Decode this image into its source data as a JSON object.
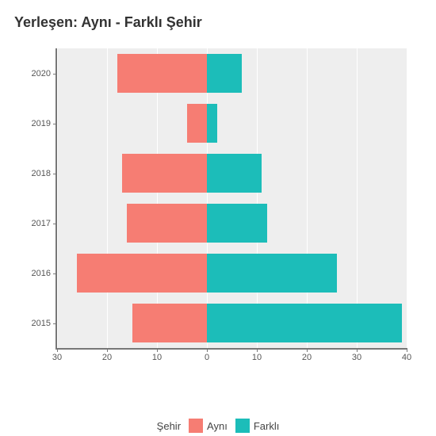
{
  "chart": {
    "type": "diverging-bar",
    "title": "Yerleşen: Aynı - Farklı Şehir",
    "title_fontsize": 18,
    "background_color": "#ffffff",
    "panel_color": "#eeeeee",
    "grid_color": "#ffffff",
    "axis_color": "#777777",
    "label_color": "#555555",
    "categories": [
      "2015",
      "2016",
      "2017",
      "2018",
      "2019",
      "2020"
    ],
    "series": {
      "left": {
        "key": "Aynı",
        "color": "#f67d73",
        "values": [
          15,
          26,
          16,
          17,
          4,
          18
        ]
      },
      "right": {
        "key": "Farklı",
        "color": "#1cbdb9",
        "values": [
          39,
          26,
          12,
          11,
          2,
          7
        ]
      }
    },
    "x_axis": {
      "ticks": [
        -30,
        -20,
        -10,
        0,
        10,
        20,
        30,
        40
      ],
      "labels": [
        "30",
        "20",
        "10",
        "0",
        "10",
        "20",
        "30",
        "40"
      ],
      "min": -30,
      "max": 40
    },
    "bar_width_ratio": 0.78,
    "y_label_fontsize": 11,
    "x_label_fontsize": 11,
    "legend": {
      "title": "Şehir",
      "items": [
        {
          "label": "Aynı",
          "color": "#f67d73"
        },
        {
          "label": "Farklı",
          "color": "#1cbdb9"
        }
      ]
    }
  }
}
